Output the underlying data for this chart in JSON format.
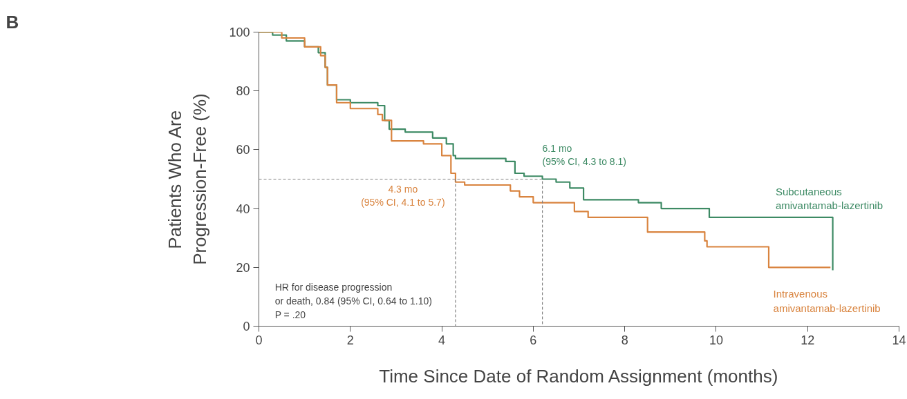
{
  "chart_data": {
    "type": "step",
    "xlabel": "Time Since Date of Random Assignment (months)",
    "ylabel": "Patients Who Are\nProgression-Free (%)",
    "xlim": [
      0,
      14
    ],
    "ylim": [
      0,
      100
    ],
    "xticks": [
      0,
      2,
      4,
      6,
      8,
      10,
      12,
      14
    ],
    "yticks": [
      0,
      20,
      40,
      60,
      80,
      100
    ],
    "grid": false,
    "marker": "none",
    "series": [
      {
        "name": "Subcutaneous\namivantamab-lazertinib",
        "color": "#3d8a64",
        "x": [
          0,
          0.3,
          0.6,
          1.0,
          1.3,
          1.45,
          1.5,
          1.7,
          2.0,
          2.6,
          2.75,
          2.85,
          3.2,
          3.8,
          4.1,
          4.25,
          4.3,
          5.4,
          5.6,
          5.8,
          6.2,
          6.5,
          6.8,
          7.1,
          8.3,
          8.8,
          9.85,
          12.55,
          12.55
        ],
        "values": [
          100,
          99,
          97,
          95,
          93,
          88,
          82,
          77,
          76,
          75,
          70,
          67,
          66,
          64,
          62,
          58,
          57,
          56,
          52,
          51,
          50,
          49,
          47,
          43,
          42,
          40,
          37,
          37,
          19
        ]
      },
      {
        "name": "Intravenous\namivantamab-lazertinib",
        "color": "#d9843f",
        "x": [
          0,
          0.5,
          1.0,
          1.35,
          1.45,
          1.5,
          1.7,
          2.0,
          2.6,
          2.7,
          2.9,
          3.6,
          4.0,
          4.2,
          4.3,
          4.5,
          5.5,
          5.7,
          6.0,
          6.9,
          7.2,
          8.5,
          9.75,
          9.8,
          11.15,
          12.5
        ],
        "values": [
          100,
          98,
          95,
          92,
          88,
          82,
          76,
          74,
          72,
          70,
          63,
          62,
          58,
          52,
          49,
          48,
          46,
          44,
          42,
          39,
          37,
          32,
          29,
          27,
          20,
          20
        ]
      },
      {
        "type": "line",
        "line_style": "dashed",
        "color": "#808080",
        "x": [
          0,
          6.2,
          6.2
        ],
        "values": [
          50,
          50,
          0
        ]
      },
      {
        "type": "line",
        "line_style": "dashed",
        "color": "#808080",
        "x": [
          4.3,
          4.3
        ],
        "values": [
          50,
          0
        ]
      }
    ],
    "annotations": [
      "B",
      {
        "text": "6.1 mo\n(95% CI, 4.3 to 8.1)",
        "x": 6.2,
        "y": 50
      },
      {
        "text": "4.3 mo\n(95% CI, 4.1 to 5.7)",
        "x": 4.3,
        "y": 50
      },
      "HR for disease progression\nor death, 0.84 (95% CI, 0.64 to 1.10)\nP = .20"
    ]
  }
}
